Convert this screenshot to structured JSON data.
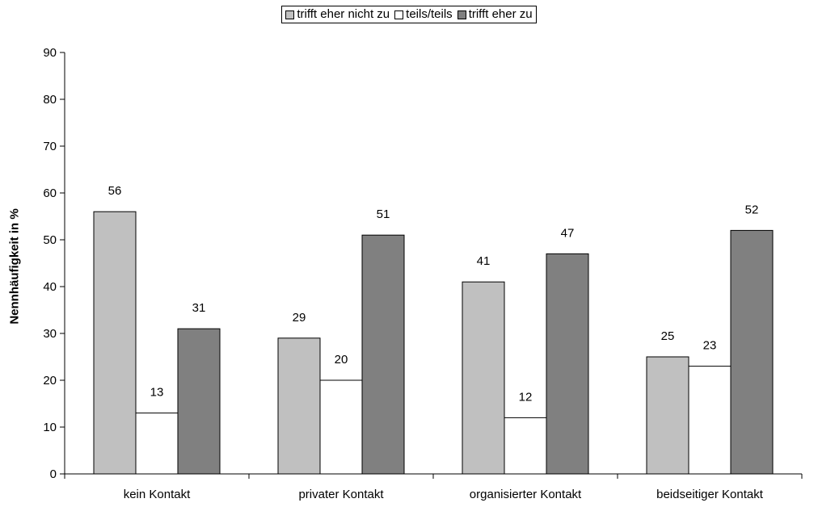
{
  "chart_data": {
    "type": "bar",
    "categories": [
      "kein Kontakt",
      "privater Kontakt",
      "organisierter Kontakt",
      "beidseitiger Kontakt"
    ],
    "series": [
      {
        "name": "trifft eher nicht zu",
        "values": [
          56,
          29,
          41,
          25
        ],
        "color": "#c0c0c0"
      },
      {
        "name": "teils/teils",
        "values": [
          13,
          20,
          12,
          23
        ],
        "color": "#ffffff"
      },
      {
        "name": "trifft eher zu",
        "values": [
          31,
          51,
          47,
          52
        ],
        "color": "#808080"
      }
    ],
    "ylabel": "Nennhäufigkeit in %",
    "ylim": [
      0,
      90
    ],
    "yticks": [
      0,
      10,
      20,
      30,
      40,
      50,
      60,
      70,
      80,
      90
    ],
    "grid": false,
    "legend_position": "top-center",
    "data_labels": true
  }
}
